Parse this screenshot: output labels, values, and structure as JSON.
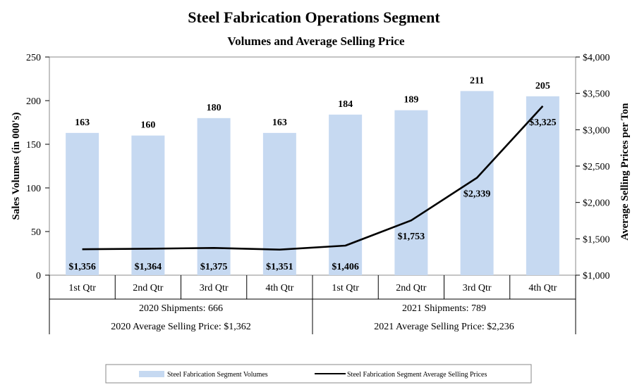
{
  "chart_data": {
    "type": "bar",
    "title": "Steel Fabrication Operations Segment",
    "subtitle": "Volumes and Average Selling Price",
    "categories": [
      "1st Qtr",
      "2nd Qtr",
      "3rd Qtr",
      "4th Qtr",
      "1st Qtr",
      "2nd Qtr",
      "3rd Qtr",
      "4th Qtr"
    ],
    "groups": [
      {
        "shipments": "2020 Shipments: 666",
        "avg_price": "2020 Average Selling Price: $1,362"
      },
      {
        "shipments": "2021 Shipments: 789",
        "avg_price": "2021 Average Selling Price: $2,236"
      }
    ],
    "series": [
      {
        "name": "Steel Fabrication Segment Volumes",
        "type": "bar",
        "axis": "left",
        "color": "#c6d9f1",
        "values": [
          163,
          160,
          180,
          163,
          184,
          189,
          211,
          205
        ],
        "labels": [
          "163",
          "160",
          "180",
          "163",
          "184",
          "189",
          "211",
          "205"
        ]
      },
      {
        "name": "Steel Fabrication Segment Average Selling Prices",
        "type": "line",
        "axis": "right",
        "color": "#000000",
        "values": [
          1356,
          1364,
          1375,
          1351,
          1406,
          1753,
          2339,
          3325
        ],
        "labels": [
          "$1,356",
          "$1,364",
          "$1,375",
          "$1,351",
          "$1,406",
          "$1,753",
          "$2,339",
          "$3,325"
        ]
      }
    ],
    "ylabel": "Sales Volumes (in 000's)",
    "ylim": [
      0,
      250
    ],
    "yticks": [
      "0",
      "50",
      "100",
      "150",
      "200",
      "250"
    ],
    "y2label": "Average Selling Prices per Ton",
    "y2lim": [
      1000,
      4000
    ],
    "y2ticks": [
      "$1,000",
      "$1,500",
      "$2,000",
      "$2,500",
      "$3,000",
      "$3,500",
      "$4,000"
    ],
    "legend_position": "bottom"
  }
}
